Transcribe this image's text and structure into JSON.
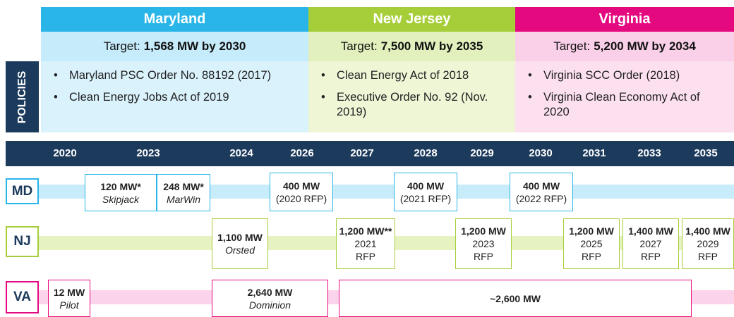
{
  "states": [
    {
      "name": "Maryland",
      "target_label": "Target:",
      "target": "1,568 MW by 2030",
      "policies": [
        "Maryland PSC Order No. 88192 (2017)",
        "Clean Energy Jobs Act of 2019"
      ]
    },
    {
      "name": "New Jersey",
      "target_label": "Target:",
      "target": "7,500 MW by 2035",
      "policies": [
        "Clean Energy Act of 2018",
        "Executive Order No. 92 (Nov. 2019)"
      ]
    },
    {
      "name": "Virginia",
      "target_label": "Target:",
      "target": "5,200 MW by 2034",
      "policies": [
        "Virginia SCC Order (2018)",
        "Virginia Clean Economy Act of 2020"
      ]
    }
  ],
  "policies_label": "POLICIES",
  "years": [
    "2020",
    "2023",
    "2024",
    "2026",
    "2027",
    "2028",
    "2029",
    "2030",
    "2031",
    "2033",
    "2035"
  ],
  "rows": [
    {
      "label": "MD",
      "boxes": [
        {
          "lines": [
            "120 MW*",
            "Skipjack"
          ]
        },
        {
          "lines": [
            "248 MW*",
            "MarWin"
          ]
        },
        {
          "lines": [
            "400 MW",
            "(2020 RFP)"
          ]
        },
        {
          "lines": [
            "400 MW",
            "(2021 RFP)"
          ]
        },
        {
          "lines": [
            "400 MW",
            "(2022 RFP)"
          ]
        }
      ]
    },
    {
      "label": "NJ",
      "boxes": [
        {
          "lines": [
            "1,100 MW",
            "Orsted"
          ]
        },
        {
          "lines": [
            "1,200 MW**",
            "2021",
            "RFP"
          ]
        },
        {
          "lines": [
            "1,200 MW",
            "2023",
            "RFP"
          ]
        },
        {
          "lines": [
            "1,200 MW",
            "2025",
            "RFP"
          ]
        },
        {
          "lines": [
            "1,400 MW",
            "2027",
            "RFP"
          ]
        },
        {
          "lines": [
            "1,400 MW",
            "2029",
            "RFP"
          ]
        }
      ]
    },
    {
      "label": "VA",
      "boxes": [
        {
          "lines": [
            "12 MW",
            "Pilot"
          ]
        },
        {
          "lines": [
            "2,640 MW",
            "Dominion"
          ]
        },
        {
          "lines": [
            "~2,600 MW"
          ]
        }
      ]
    }
  ]
}
